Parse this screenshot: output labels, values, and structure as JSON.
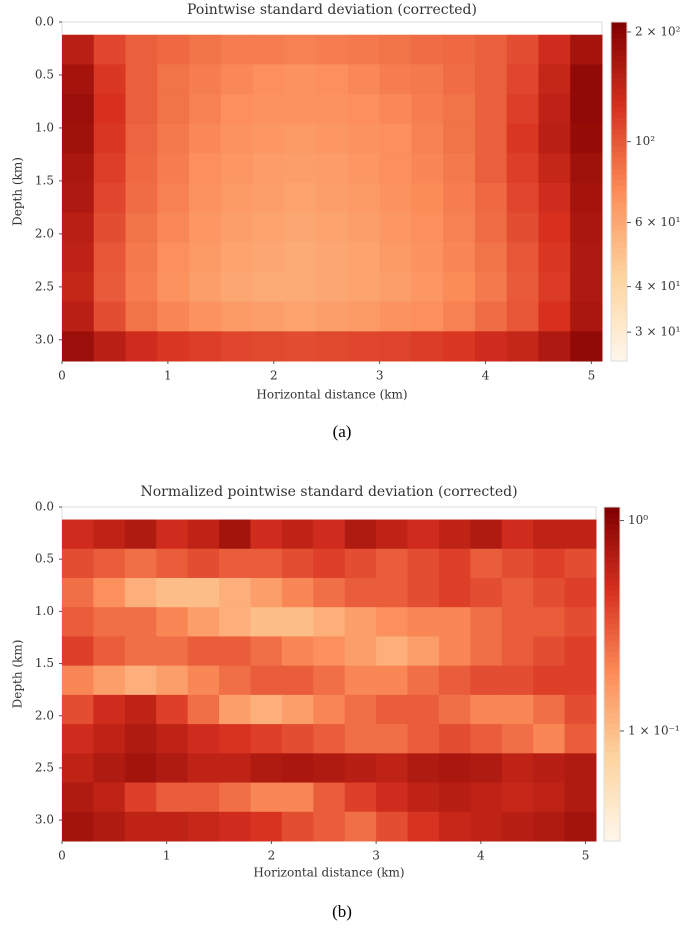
{
  "chart_data": [
    {
      "type": "heatmap",
      "title": "Pointwise standard deviation (corrected)",
      "x_label": "Horizontal distance (km)",
      "y_label": "Depth (km)",
      "caption": "(a)",
      "xlim": [
        0,
        5.1
      ],
      "ylim": [
        0,
        3.2
      ],
      "y_inverted": true,
      "xticks": [
        0,
        1,
        2,
        3,
        4,
        5
      ],
      "yticks": [
        {
          "value": 0,
          "label": "0.0"
        },
        0.5,
        {
          "value": 1,
          "label": "1.0"
        },
        1.5,
        {
          "value": 2,
          "label": "2.0"
        },
        2.5,
        {
          "value": 3,
          "label": "3.0"
        }
      ],
      "color_scale": "log",
      "colormap": [
        "#fff7ec",
        "#fdd49e",
        "#fc8d59",
        "#d7301f",
        "#7f0000"
      ],
      "clim": [
        25,
        213
      ],
      "cticks": [
        {
          "value": 200,
          "label": "2 × 10²"
        },
        {
          "value": 100,
          "label": "10²"
        },
        {
          "value": 60,
          "label": "6 × 10¹"
        },
        {
          "value": 40,
          "label": "4 × 10¹"
        },
        {
          "value": 30,
          "label": "3 × 10¹"
        }
      ],
      "x": [
        0.15,
        0.45,
        0.75,
        1.05,
        1.35,
        1.65,
        1.95,
        2.25,
        2.55,
        2.85,
        3.15,
        3.45,
        3.75,
        4.05,
        4.35,
        4.65,
        4.95
      ],
      "y": [
        0.26,
        0.54,
        0.82,
        1.1,
        1.38,
        1.66,
        1.94,
        2.22,
        2.5,
        2.78,
        3.06
      ],
      "z": [
        [
          150,
          110,
          95,
          90,
          85,
          80,
          80,
          78,
          80,
          82,
          85,
          88,
          90,
          95,
          105,
          130,
          170
        ],
        [
          170,
          120,
          95,
          85,
          80,
          75,
          72,
          70,
          72,
          75,
          80,
          82,
          88,
          95,
          110,
          140,
          190
        ],
        [
          180,
          125,
          95,
          85,
          78,
          72,
          70,
          70,
          70,
          72,
          75,
          80,
          85,
          95,
          115,
          145,
          190
        ],
        [
          175,
          120,
          92,
          82,
          75,
          70,
          68,
          66,
          68,
          70,
          72,
          78,
          85,
          95,
          120,
          150,
          185
        ],
        [
          165,
          115,
          90,
          80,
          72,
          68,
          65,
          64,
          65,
          68,
          72,
          76,
          82,
          95,
          115,
          140,
          175
        ],
        [
          160,
          110,
          88,
          78,
          70,
          66,
          64,
          62,
          64,
          66,
          70,
          74,
          80,
          90,
          110,
          130,
          170
        ],
        [
          150,
          105,
          85,
          75,
          68,
          64,
          62,
          60,
          62,
          64,
          68,
          72,
          78,
          88,
          105,
          125,
          165
        ],
        [
          145,
          100,
          82,
          72,
          66,
          62,
          60,
          58,
          60,
          62,
          66,
          70,
          76,
          85,
          100,
          120,
          160
        ],
        [
          140,
          98,
          80,
          70,
          64,
          60,
          58,
          58,
          60,
          62,
          64,
          68,
          74,
          82,
          98,
          118,
          160
        ],
        [
          150,
          105,
          85,
          76,
          70,
          66,
          64,
          62,
          64,
          66,
          70,
          72,
          78,
          88,
          100,
          125,
          165
        ],
        [
          180,
          150,
          130,
          120,
          115,
          110,
          108,
          106,
          108,
          110,
          112,
          116,
          120,
          130,
          140,
          160,
          190
        ]
      ]
    },
    {
      "type": "heatmap",
      "title": "Normalized pointwise standard deviation (corrected)",
      "x_label": "Horizontal distance (km)",
      "y_label": "Depth (km)",
      "caption": "(b)",
      "xlim": [
        0,
        5.1
      ],
      "ylim": [
        0,
        3.2
      ],
      "y_inverted": true,
      "xticks": [
        0,
        1,
        2,
        3,
        4,
        5
      ],
      "yticks": [
        {
          "value": 0,
          "label": "0.0"
        },
        0.5,
        {
          "value": 1,
          "label": "1.0"
        },
        1.5,
        {
          "value": 2,
          "label": "2.0"
        },
        2.5,
        {
          "value": 3,
          "label": "3.0"
        }
      ],
      "color_scale": "log",
      "colormap": [
        "#fff7ec",
        "#fdd49e",
        "#fc8d59",
        "#d7301f",
        "#7f0000"
      ],
      "clim": [
        0.03,
        1.16
      ],
      "cticks": [
        {
          "value": 1,
          "label": "10⁰"
        },
        {
          "value": 0.1,
          "label": "1 × 10⁻¹"
        }
      ],
      "x": [
        0.15,
        0.45,
        0.75,
        1.05,
        1.35,
        1.65,
        1.95,
        2.25,
        2.55,
        2.85,
        3.15,
        3.45,
        3.75,
        4.05,
        4.35,
        4.65,
        4.95
      ],
      "y": [
        0.26,
        0.54,
        0.82,
        1.1,
        1.38,
        1.66,
        1.94,
        2.22,
        2.5,
        2.78,
        3.06
      ],
      "z": [
        [
          0.5,
          0.6,
          0.7,
          0.5,
          0.6,
          0.8,
          0.5,
          0.6,
          0.5,
          0.7,
          0.6,
          0.5,
          0.6,
          0.7,
          0.5,
          0.6,
          0.6
        ],
        [
          0.35,
          0.3,
          0.25,
          0.3,
          0.35,
          0.3,
          0.3,
          0.35,
          0.4,
          0.35,
          0.3,
          0.35,
          0.4,
          0.3,
          0.35,
          0.4,
          0.35
        ],
        [
          0.25,
          0.18,
          0.12,
          0.1,
          0.1,
          0.12,
          0.15,
          0.2,
          0.25,
          0.3,
          0.3,
          0.35,
          0.4,
          0.35,
          0.3,
          0.35,
          0.4
        ],
        [
          0.3,
          0.25,
          0.25,
          0.2,
          0.15,
          0.12,
          0.1,
          0.1,
          0.12,
          0.15,
          0.18,
          0.2,
          0.2,
          0.25,
          0.3,
          0.3,
          0.35
        ],
        [
          0.4,
          0.3,
          0.25,
          0.25,
          0.3,
          0.3,
          0.25,
          0.2,
          0.18,
          0.15,
          0.12,
          0.15,
          0.2,
          0.25,
          0.3,
          0.35,
          0.4
        ],
        [
          0.2,
          0.15,
          0.12,
          0.15,
          0.2,
          0.25,
          0.3,
          0.3,
          0.25,
          0.2,
          0.2,
          0.25,
          0.3,
          0.35,
          0.35,
          0.4,
          0.4
        ],
        [
          0.35,
          0.5,
          0.6,
          0.4,
          0.25,
          0.15,
          0.12,
          0.15,
          0.2,
          0.25,
          0.3,
          0.3,
          0.25,
          0.2,
          0.2,
          0.25,
          0.35
        ],
        [
          0.5,
          0.6,
          0.7,
          0.6,
          0.5,
          0.45,
          0.4,
          0.35,
          0.3,
          0.25,
          0.25,
          0.3,
          0.35,
          0.3,
          0.25,
          0.2,
          0.3
        ],
        [
          0.6,
          0.7,
          0.8,
          0.7,
          0.6,
          0.6,
          0.7,
          0.75,
          0.7,
          0.65,
          0.6,
          0.7,
          0.75,
          0.7,
          0.6,
          0.65,
          0.7
        ],
        [
          0.7,
          0.6,
          0.4,
          0.3,
          0.3,
          0.25,
          0.2,
          0.2,
          0.3,
          0.4,
          0.5,
          0.6,
          0.65,
          0.6,
          0.55,
          0.6,
          0.7
        ],
        [
          0.8,
          0.7,
          0.6,
          0.6,
          0.55,
          0.5,
          0.45,
          0.35,
          0.3,
          0.25,
          0.35,
          0.45,
          0.55,
          0.6,
          0.65,
          0.7,
          0.8
        ]
      ]
    }
  ]
}
